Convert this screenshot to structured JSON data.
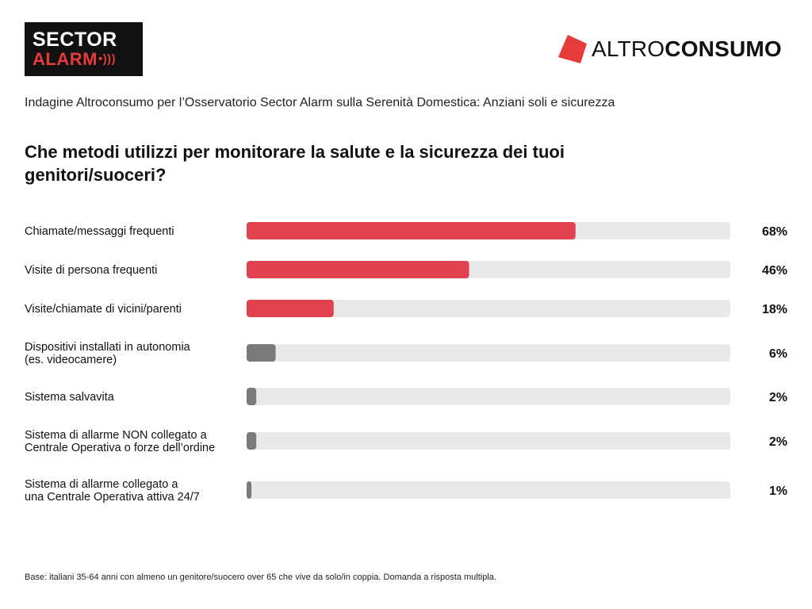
{
  "logos": {
    "sector_alarm": {
      "line1": "SECTOR",
      "line2": "ALARM",
      "waves": "•)))"
    },
    "altroconsumo": {
      "part1": "ALTRO",
      "part2": "CONSUMO",
      "mark_color": "#e63b3b"
    }
  },
  "subtitle": "Indagine Altroconsumo per l’Osservatorio Sector Alarm sulla Serenità Domestica: Anziani soli e sicurezza",
  "question": "Che metodi utilizzi per monitorare la salute e la sicurezza dei tuoi genitori/suoceri?",
  "footnote": "Base: italiani 35-64 anni con almeno un genitore/suocero over 65 che vive da solo/in coppia. Domanda a risposta multipla.",
  "chart_data": {
    "type": "bar",
    "orientation": "horizontal",
    "xlim": [
      0,
      100
    ],
    "grid": false,
    "value_suffix": "%",
    "colors": {
      "highlight": "#e0434f",
      "muted": "#7a7a7a",
      "track": "#e9e9e9"
    },
    "categories": [
      [
        "Chiamate/messaggi frequenti"
      ],
      [
        "Visite di persona frequenti"
      ],
      [
        "Visite/chiamate di vicini/parenti"
      ],
      [
        "Dispositivi installati in autonomia",
        "(es. videocamere)"
      ],
      [
        "Sistema salvavita"
      ],
      [
        "Sistema di allarme NON collegato a",
        "Centrale Operativa o forze dell’ordine"
      ],
      [
        "Sistema di allarme collegato a",
        "una Centrale Operativa attiva 24/7"
      ]
    ],
    "values": [
      68,
      46,
      18,
      6,
      2,
      2,
      1
    ],
    "labels": [
      "68%",
      "46%",
      "18%",
      "6%",
      "2%",
      "2%",
      "1%"
    ],
    "highlight": [
      true,
      true,
      true,
      false,
      false,
      false,
      false
    ]
  }
}
